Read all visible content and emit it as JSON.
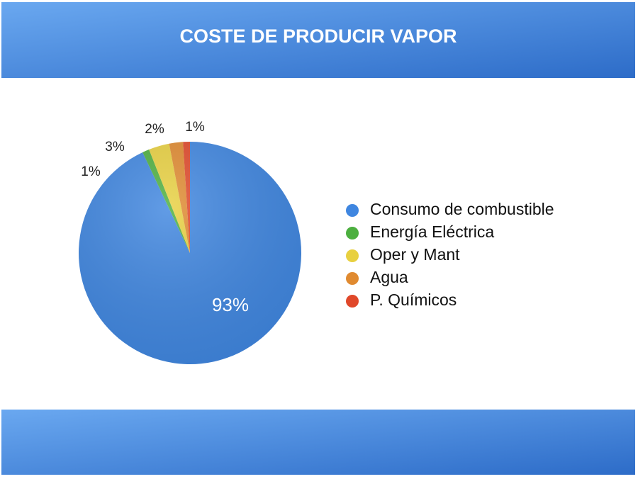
{
  "chart_data": {
    "type": "pie",
    "title": "COSTE DE PRODUCIR VAPOR",
    "categories": [
      "Consumo de combustible",
      "Energía Eléctrica",
      "Oper y Mant",
      "Agua",
      "P. Químicos"
    ],
    "values": [
      93,
      1,
      3,
      2,
      1
    ],
    "value_labels": [
      "93%",
      "1%",
      "3%",
      "2%",
      "1%"
    ],
    "colors": [
      "#3f86e0",
      "#4caf3f",
      "#e8d040",
      "#e08a30",
      "#e0482a"
    ],
    "legend": "right"
  }
}
